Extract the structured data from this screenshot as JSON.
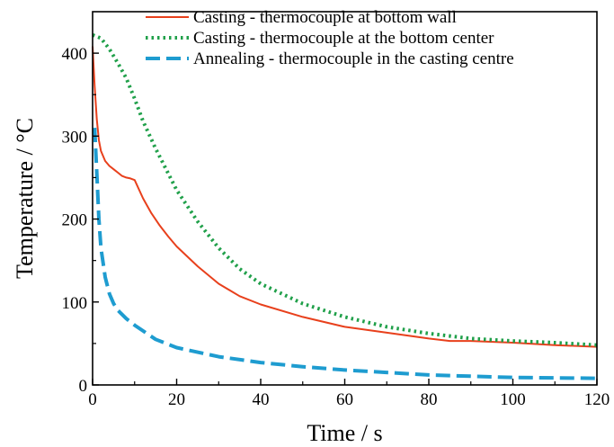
{
  "chart_data": {
    "type": "line",
    "title": "",
    "xlabel": "Time / s",
    "ylabel": "Temperature / °C",
    "xlim": [
      0,
      120
    ],
    "ylim": [
      0,
      450
    ],
    "xticks": [
      0,
      20,
      40,
      60,
      80,
      100,
      120
    ],
    "yticks": [
      0,
      100,
      200,
      300,
      400
    ],
    "grid": false,
    "legend_position": "top-right",
    "series": [
      {
        "name": "Casting - thermocouple at bottom wall",
        "color": "#e8401c",
        "dash": "solid",
        "x": [
          0,
          0.5,
          1,
          1.5,
          2,
          3,
          4,
          5,
          6,
          7,
          8,
          9,
          10,
          12,
          14,
          16,
          18,
          20,
          25,
          30,
          35,
          40,
          50,
          60,
          70,
          80,
          85,
          90,
          100,
          110,
          120
        ],
        "y": [
          408,
          360,
          320,
          295,
          282,
          270,
          264,
          260,
          256,
          252,
          250,
          249,
          247,
          225,
          207,
          192,
          179,
          167,
          143,
          122,
          107,
          97,
          82,
          70,
          63,
          56,
          53,
          53,
          51,
          48,
          46
        ]
      },
      {
        "name": "Casting - thermocouple at the bottom center",
        "color": "#20a04a",
        "dash": "dot",
        "x": [
          0,
          2,
          4,
          6,
          8,
          10,
          12,
          15,
          20,
          25,
          30,
          35,
          40,
          50,
          60,
          70,
          80,
          90,
          100,
          110,
          120
        ],
        "y": [
          422,
          418,
          405,
          388,
          370,
          345,
          318,
          285,
          235,
          197,
          165,
          140,
          122,
          98,
          82,
          70,
          62,
          56,
          53,
          51,
          48
        ]
      },
      {
        "name": "Annealing - thermocouple in the casting centre",
        "color": "#1e9cd0",
        "dash": "dash",
        "x": [
          0.5,
          1,
          1.5,
          2,
          3,
          4,
          5,
          6,
          8,
          10,
          15,
          20,
          30,
          40,
          50,
          60,
          80,
          100,
          120
        ],
        "y": [
          310,
          255,
          200,
          165,
          130,
          110,
          98,
          90,
          80,
          72,
          55,
          45,
          34,
          27,
          22,
          18,
          12,
          9,
          8
        ]
      }
    ]
  }
}
